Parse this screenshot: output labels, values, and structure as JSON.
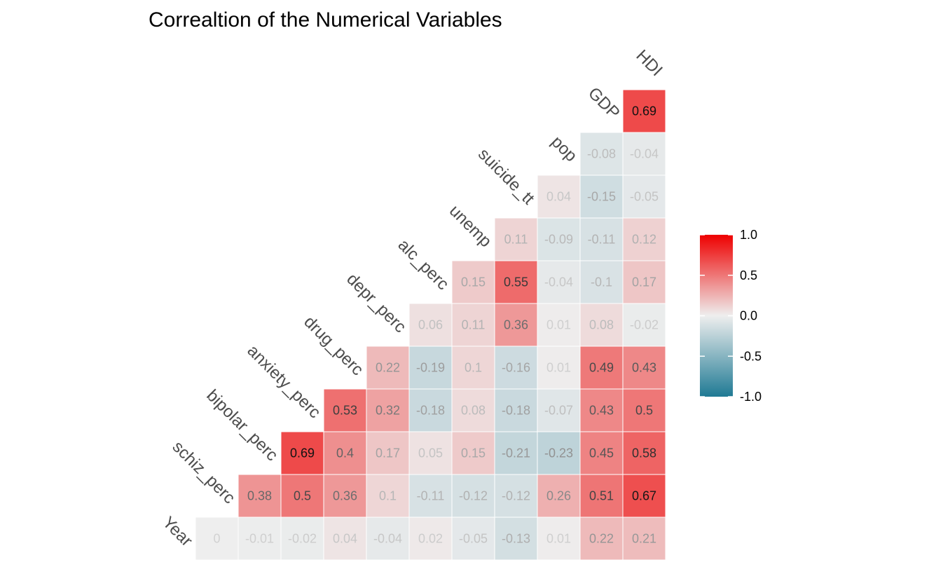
{
  "chart_data": {
    "type": "heatmap",
    "title": "Correaltion of the Numerical Variables",
    "variables": [
      "Year",
      "schiz_perc",
      "bipolar_perc",
      "anxiety_perc",
      "drug_perc",
      "depr_perc",
      "alc_perc",
      "unemp",
      "suicide_tt",
      "pop",
      "GDP",
      "HDI"
    ],
    "rows": [
      {
        "row_var": "Year",
        "values": [
          0,
          -0.01,
          -0.02,
          0.04,
          -0.04,
          0.02,
          -0.05,
          -0.13,
          0.01,
          0.22,
          0.21
        ]
      },
      {
        "row_var": "schiz_perc",
        "values": [
          0.38,
          0.5,
          0.36,
          0.1,
          -0.11,
          -0.12,
          -0.12,
          0.26,
          0.51,
          0.67
        ]
      },
      {
        "row_var": "bipolar_perc",
        "values": [
          0.69,
          0.4,
          0.17,
          0.05,
          0.15,
          -0.21,
          -0.23,
          0.45,
          0.58
        ]
      },
      {
        "row_var": "anxiety_perc",
        "values": [
          0.53,
          0.32,
          -0.18,
          0.08,
          -0.18,
          -0.07,
          0.43,
          0.5
        ]
      },
      {
        "row_var": "drug_perc",
        "values": [
          0.22,
          -0.19,
          0.1,
          -0.16,
          0.01,
          0.49,
          0.43
        ]
      },
      {
        "row_var": "depr_perc",
        "values": [
          0.06,
          0.11,
          0.36,
          0.01,
          0.08,
          -0.02
        ]
      },
      {
        "row_var": "alc_perc",
        "values": [
          0.15,
          0.55,
          -0.04,
          -0.1,
          0.17
        ]
      },
      {
        "row_var": "unemp",
        "values": [
          0.11,
          -0.09,
          -0.11,
          0.12
        ]
      },
      {
        "row_var": "suicide_tt",
        "values": [
          0.04,
          -0.15,
          -0.05
        ]
      },
      {
        "row_var": "pop",
        "values": [
          -0.08,
          -0.04
        ]
      },
      {
        "row_var": "GDP",
        "values": [
          0.69
        ]
      }
    ],
    "legend": {
      "placement": "right",
      "range": [
        -1,
        1
      ],
      "ticks": [
        1.0,
        0.5,
        0.0,
        -0.5,
        -1.0
      ],
      "tick_labels": [
        "1.0",
        "0.5",
        "0.0",
        "-0.5",
        "-1.0"
      ],
      "colors": {
        "low": "#1f7a94",
        "mid": "#eeeeee",
        "high": "#ee0000"
      }
    }
  }
}
